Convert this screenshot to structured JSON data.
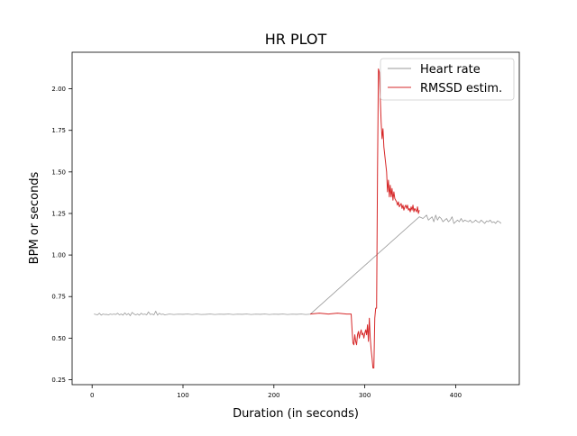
{
  "chart_data": {
    "type": "line",
    "title": "HR PLOT",
    "xlabel": "Duration (in seconds)",
    "ylabel": "BPM or seconds",
    "xlim": [
      -22,
      470
    ],
    "ylim": [
      0.22,
      2.22
    ],
    "x_ticks": [
      0,
      100,
      200,
      300,
      400
    ],
    "y_ticks": [
      0.25,
      0.5,
      0.75,
      1.0,
      1.25,
      1.5,
      1.75,
      2.0
    ],
    "y_tick_labels": [
      "0.25",
      "0.50",
      "0.75",
      "1.00",
      "1.25",
      "1.50",
      "1.75",
      "2.00"
    ],
    "grid": false,
    "legend_position": "top-right",
    "series": [
      {
        "name": "Heart rate",
        "color": "#999999",
        "x": [
          2,
          6,
          8,
          10,
          12,
          14,
          16,
          18,
          20,
          22,
          24,
          26,
          28,
          30,
          32,
          34,
          36,
          38,
          40,
          42,
          44,
          46,
          48,
          50,
          52,
          54,
          56,
          58,
          60,
          62,
          64,
          66,
          68,
          70,
          72,
          74,
          76,
          78,
          80,
          85,
          90,
          95,
          100,
          105,
          110,
          115,
          120,
          125,
          130,
          135,
          140,
          145,
          150,
          155,
          160,
          165,
          170,
          175,
          180,
          185,
          190,
          195,
          200,
          205,
          210,
          215,
          220,
          225,
          230,
          235,
          240,
          360,
          364,
          368,
          370,
          372,
          374,
          376,
          378,
          380,
          382,
          384,
          386,
          388,
          390,
          392,
          394,
          396,
          398,
          400,
          402,
          404,
          406,
          408,
          410,
          412,
          414,
          416,
          418,
          420,
          422,
          424,
          426,
          428,
          430,
          432,
          434,
          436,
          438,
          440,
          442,
          444,
          446,
          448,
          450
        ],
        "y": [
          0.645,
          0.64,
          0.65,
          0.638,
          0.645,
          0.642,
          0.643,
          0.64,
          0.645,
          0.642,
          0.645,
          0.642,
          0.65,
          0.64,
          0.645,
          0.638,
          0.652,
          0.64,
          0.648,
          0.635,
          0.655,
          0.645,
          0.64,
          0.645,
          0.638,
          0.65,
          0.642,
          0.645,
          0.64,
          0.658,
          0.642,
          0.645,
          0.64,
          0.662,
          0.638,
          0.65,
          0.642,
          0.645,
          0.64,
          0.645,
          0.642,
          0.644,
          0.643,
          0.645,
          0.642,
          0.645,
          0.642,
          0.643,
          0.645,
          0.642,
          0.644,
          0.643,
          0.645,
          0.642,
          0.644,
          0.643,
          0.645,
          0.642,
          0.644,
          0.643,
          0.645,
          0.642,
          0.644,
          0.643,
          0.645,
          0.642,
          0.644,
          0.643,
          0.645,
          0.642,
          0.644,
          1.23,
          1.22,
          1.24,
          1.21,
          1.22,
          1.23,
          1.2,
          1.24,
          1.21,
          1.23,
          1.22,
          1.2,
          1.21,
          1.22,
          1.2,
          1.21,
          1.23,
          1.19,
          1.2,
          1.21,
          1.2,
          1.22,
          1.2,
          1.21,
          1.205,
          1.2,
          1.21,
          1.195,
          1.2,
          1.21,
          1.2,
          1.195,
          1.21,
          1.2,
          1.19,
          1.205,
          1.2,
          1.21,
          1.195,
          1.2,
          1.19,
          1.205,
          1.2,
          1.19
        ]
      },
      {
        "name": "RMSSD estim.",
        "color": "#d62728",
        "x": [
          240,
          250,
          260,
          270,
          280,
          285,
          286,
          287,
          288,
          289,
          290,
          291,
          292,
          293,
          294,
          295,
          296,
          297,
          298,
          299,
          300,
          301,
          302,
          303,
          304,
          305,
          306,
          307,
          308,
          309,
          310,
          311,
          312,
          313,
          314,
          315,
          316,
          317,
          318,
          319,
          320,
          321,
          322,
          323,
          324,
          325,
          326,
          327,
          328,
          329,
          330,
          331,
          332,
          333,
          334,
          335,
          336,
          337,
          338,
          339,
          340,
          341,
          342,
          343,
          344,
          345,
          346,
          347,
          348,
          349,
          350,
          351,
          352,
          353,
          354,
          355,
          356,
          357,
          358,
          359,
          360
        ],
        "y": [
          0.645,
          0.65,
          0.645,
          0.65,
          0.645,
          0.645,
          0.55,
          0.47,
          0.46,
          0.52,
          0.48,
          0.46,
          0.52,
          0.54,
          0.5,
          0.53,
          0.55,
          0.52,
          0.53,
          0.5,
          0.53,
          0.55,
          0.52,
          0.58,
          0.48,
          0.62,
          0.5,
          0.43,
          0.38,
          0.32,
          0.32,
          0.62,
          0.68,
          0.68,
          1.5,
          2.12,
          2.1,
          1.95,
          1.8,
          1.7,
          1.76,
          1.65,
          1.6,
          1.55,
          1.5,
          1.38,
          1.45,
          1.35,
          1.42,
          1.35,
          1.4,
          1.33,
          1.38,
          1.34,
          1.33,
          1.32,
          1.3,
          1.32,
          1.29,
          1.3,
          1.31,
          1.28,
          1.3,
          1.27,
          1.29,
          1.3,
          1.28,
          1.3,
          1.27,
          1.28,
          1.26,
          1.29,
          1.27,
          1.3,
          1.26,
          1.28,
          1.27,
          1.26,
          1.29,
          1.25,
          1.27
        ]
      }
    ]
  }
}
